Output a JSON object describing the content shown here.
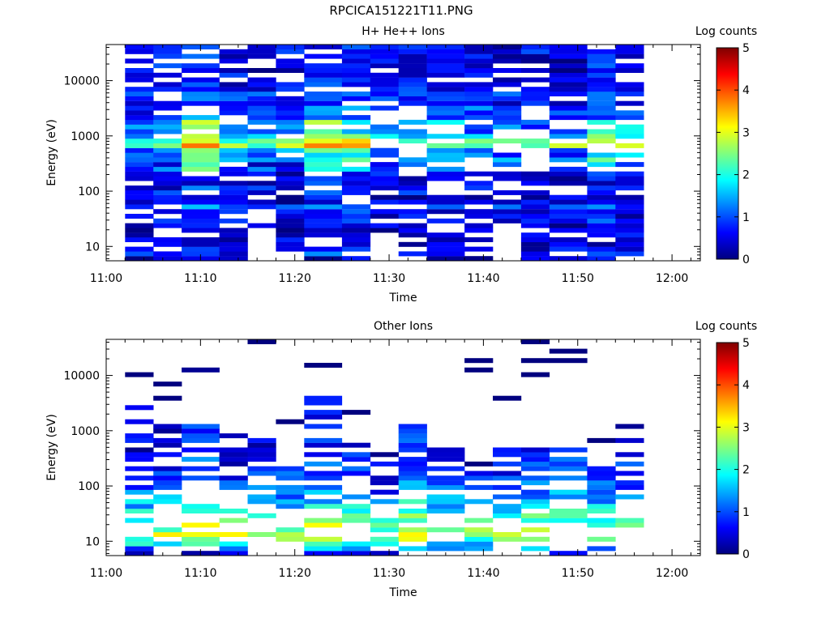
{
  "figure_title": "RPCICA151221T11.PNG",
  "colorscale": [
    "#00007f",
    "#0000ff",
    "#007fff",
    "#00ffff",
    "#7fff7f",
    "#ffff00",
    "#ff7f00",
    "#ff0000",
    "#7f0000"
  ],
  "chart_data": [
    {
      "type": "heatmap",
      "title": "H+ He++ Ions",
      "xlabel": "Time",
      "ylabel": "Energy (eV)",
      "colorbar_label": "Log counts",
      "colorbar_range": [
        0,
        5
      ],
      "colorbar_ticks": [
        "0",
        "1",
        "2",
        "3",
        "4",
        "5"
      ],
      "x_range": [
        "11:00",
        "12:03"
      ],
      "x_ticks": [
        "11:00",
        "11:10",
        "11:20",
        "11:30",
        "11:40",
        "11:50",
        "12:00"
      ],
      "y_scale": "log",
      "y_range": [
        5.5,
        45000
      ],
      "y_ticks": [
        "10",
        "100",
        "1000",
        "10000"
      ],
      "time_bins": [
        "11:02",
        "11:05",
        "11:08",
        "11:12",
        "11:15",
        "11:18",
        "11:21",
        "11:25",
        "11:28",
        "11:31",
        "11:34",
        "11:38",
        "11:41",
        "11:44",
        "11:47",
        "11:51",
        "11:54"
      ],
      "energy_levels": 46,
      "energy_range": [
        5.5,
        45000
      ],
      "channel_means": [
        0.2,
        0.6,
        0.5,
        0.3,
        0.4,
        0.3,
        0.3,
        0.4,
        0.6,
        0.4,
        0.5,
        0.9,
        0.4,
        0.3,
        0.7,
        0.6,
        0.4,
        0.4,
        0.5,
        0.9,
        0.6,
        1.3,
        0.9,
        1.1,
        2.5,
        2.1,
        1.4,
        1.0,
        1.1,
        1.3,
        0.9,
        0.8,
        1.0,
        0.6,
        0.7,
        0.8,
        0.6,
        0.5,
        0.5,
        0.6,
        0.4,
        0.6,
        0.4,
        0.5,
        0.6,
        0.5
      ],
      "bin_boost": [
        0,
        0.1,
        1.2,
        0.2,
        0,
        0.1,
        1.1,
        0.9,
        0.3,
        0.2,
        0.3,
        0.1,
        0.1,
        0,
        0,
        0.9,
        0.6
      ],
      "empty_fraction": 0.24,
      "data_end": "11:57"
    },
    {
      "type": "heatmap",
      "title": "Other Ions",
      "xlabel": "Time",
      "ylabel": "Energy (eV)",
      "colorbar_label": "Log counts",
      "colorbar_range": [
        0,
        5
      ],
      "colorbar_ticks": [
        "0",
        "1",
        "2",
        "3",
        "4",
        "5"
      ],
      "x_range": [
        "11:00",
        "12:03"
      ],
      "x_ticks": [
        "11:00",
        "11:10",
        "11:20",
        "11:30",
        "11:40",
        "11:50",
        "12:00"
      ],
      "y_scale": "log",
      "y_range": [
        5.5,
        45000
      ],
      "y_ticks": [
        "10",
        "100",
        "1000",
        "10000"
      ],
      "time_bins": [
        "11:02",
        "11:05",
        "11:08",
        "11:12",
        "11:15",
        "11:18",
        "11:21",
        "11:25",
        "11:28",
        "11:31",
        "11:34",
        "11:38",
        "11:41",
        "11:44",
        "11:47",
        "11:51",
        "11:54"
      ],
      "energy_levels": 46,
      "energy_range": [
        5.5,
        45000
      ],
      "channel_means": [
        0.3,
        1.2,
        1.8,
        2.4,
        2.9,
        2.6,
        2.5,
        2.2,
        2.1,
        1.8,
        1.6,
        1.5,
        1.3,
        1.1,
        1.0,
        0.9,
        0.8,
        0.8,
        0.7,
        0.6,
        0.5,
        0.5,
        0.4,
        0.4,
        0.4,
        0.3,
        0.3,
        0.3,
        0.3,
        0.2,
        0.2,
        0.2,
        0.2,
        0.2,
        0.2,
        0.2,
        0.2,
        0.2,
        0.2,
        0.2,
        0.2,
        0.2,
        0.2,
        0.2,
        0.2,
        0.2
      ],
      "bin_boost": [
        0,
        0,
        0.5,
        0,
        0,
        0,
        0.3,
        0.3,
        -0.3,
        0.5,
        0,
        -0.3,
        0,
        0.2,
        0.3,
        0,
        0.1
      ],
      "empty_fraction": 0.45,
      "bin_max_channel": [
        31,
        27,
        28,
        25,
        24,
        22,
        33,
        21,
        23,
        27,
        22,
        19,
        23,
        24,
        22,
        20,
        27
      ],
      "data_end": "11:57"
    }
  ]
}
